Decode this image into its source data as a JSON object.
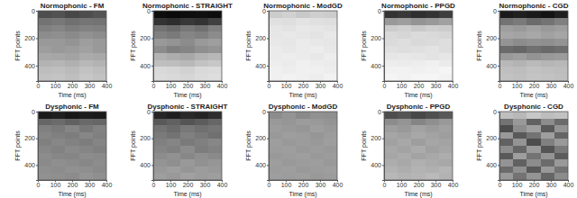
{
  "chart_data": [
    {
      "type": "heatmap",
      "title": "Normophonic - FM",
      "x_label": "Time (ms)",
      "y_label": "FFT points",
      "xlim": [
        0,
        400
      ],
      "xticks": [
        0,
        100,
        200,
        300,
        400
      ],
      "ylim": [
        0,
        512
      ],
      "yticks": [
        0,
        200,
        400
      ],
      "zlim": [
        0,
        1
      ],
      "cells": [
        [
          0.3,
          0.32,
          0.28,
          0.3,
          0.33
        ],
        [
          0.45,
          0.47,
          0.44,
          0.46,
          0.45
        ],
        [
          0.5,
          0.52,
          0.49,
          0.51,
          0.5
        ],
        [
          0.55,
          0.56,
          0.54,
          0.57,
          0.55
        ],
        [
          0.6,
          0.6,
          0.58,
          0.62,
          0.6
        ],
        [
          0.62,
          0.6,
          0.61,
          0.63,
          0.6
        ],
        [
          0.66,
          0.65,
          0.64,
          0.67,
          0.66
        ],
        [
          0.7,
          0.71,
          0.69,
          0.72,
          0.7
        ],
        [
          0.74,
          0.75,
          0.73,
          0.76,
          0.74
        ],
        [
          0.76,
          0.77,
          0.75,
          0.78,
          0.76
        ]
      ]
    },
    {
      "type": "heatmap",
      "title": "Normophonic - STRAIGHT",
      "x_label": "Time (ms)",
      "y_label": "FFT points",
      "xlim": [
        0,
        400
      ],
      "xticks": [
        0,
        100,
        200,
        300,
        400
      ],
      "ylim": [
        0,
        512
      ],
      "yticks": [
        0,
        200,
        400
      ],
      "zlim": [
        0,
        1
      ],
      "cells": [
        [
          0.05,
          0.04,
          0.05,
          0.06,
          0.05
        ],
        [
          0.2,
          0.18,
          0.22,
          0.2,
          0.25
        ],
        [
          0.45,
          0.42,
          0.47,
          0.44,
          0.5
        ],
        [
          0.5,
          0.48,
          0.52,
          0.5,
          0.55
        ],
        [
          0.6,
          0.58,
          0.55,
          0.6,
          0.62
        ],
        [
          0.55,
          0.5,
          0.52,
          0.56,
          0.58
        ],
        [
          0.7,
          0.68,
          0.66,
          0.7,
          0.72
        ],
        [
          0.75,
          0.74,
          0.72,
          0.76,
          0.78
        ],
        [
          0.85,
          0.84,
          0.82,
          0.85,
          0.86
        ],
        [
          0.86,
          0.85,
          0.84,
          0.86,
          0.87
        ]
      ]
    },
    {
      "type": "heatmap",
      "title": "Normophonic - ModGD",
      "x_label": "Time (ms)",
      "y_label": "FFT points",
      "xlim": [
        0,
        400
      ],
      "xticks": [
        0,
        100,
        200,
        300,
        400
      ],
      "ylim": [
        0,
        512
      ],
      "yticks": [
        0,
        200,
        400
      ],
      "zlim": [
        0,
        1
      ],
      "cells": [
        [
          0.8,
          0.82,
          0.79,
          0.81,
          0.8
        ],
        [
          0.88,
          0.87,
          0.89,
          0.88,
          0.87
        ],
        [
          0.9,
          0.89,
          0.91,
          0.9,
          0.89
        ],
        [
          0.9,
          0.91,
          0.9,
          0.89,
          0.91
        ],
        [
          0.91,
          0.9,
          0.92,
          0.91,
          0.9
        ],
        [
          0.92,
          0.91,
          0.92,
          0.93,
          0.91
        ],
        [
          0.92,
          0.93,
          0.92,
          0.91,
          0.93
        ],
        [
          0.93,
          0.92,
          0.94,
          0.93,
          0.92
        ],
        [
          0.94,
          0.93,
          0.94,
          0.94,
          0.93
        ],
        [
          0.94,
          0.95,
          0.94,
          0.93,
          0.95
        ]
      ]
    },
    {
      "type": "heatmap",
      "title": "Normophonic - PPGD",
      "x_label": "Time (ms)",
      "y_label": "FFT points",
      "xlim": [
        0,
        400
      ],
      "xticks": [
        0,
        100,
        200,
        300,
        400
      ],
      "ylim": [
        0,
        512
      ],
      "yticks": [
        0,
        200,
        400
      ],
      "zlim": [
        0,
        1
      ],
      "cells": [
        [
          0.2,
          0.22,
          0.18,
          0.2,
          0.24
        ],
        [
          0.6,
          0.62,
          0.58,
          0.6,
          0.63
        ],
        [
          0.8,
          0.82,
          0.79,
          0.81,
          0.8
        ],
        [
          0.85,
          0.84,
          0.86,
          0.85,
          0.84
        ],
        [
          0.86,
          0.87,
          0.85,
          0.86,
          0.87
        ],
        [
          0.88,
          0.87,
          0.88,
          0.89,
          0.87
        ],
        [
          0.9,
          0.91,
          0.9,
          0.89,
          0.9
        ],
        [
          0.93,
          0.92,
          0.93,
          0.94,
          0.92
        ],
        [
          0.95,
          0.95,
          0.94,
          0.95,
          0.96
        ],
        [
          0.96,
          0.95,
          0.96,
          0.96,
          0.95
        ]
      ]
    },
    {
      "type": "heatmap",
      "title": "Normophonic - CGD",
      "x_label": "Time (ms)",
      "y_label": "FFT points",
      "xlim": [
        0,
        400
      ],
      "xticks": [
        0,
        100,
        200,
        300,
        400
      ],
      "ylim": [
        0,
        512
      ],
      "yticks": [
        0,
        200,
        400
      ],
      "zlim": [
        0,
        1
      ],
      "cells": [
        [
          0.1,
          0.12,
          0.1,
          0.08,
          0.12
        ],
        [
          0.45,
          0.48,
          0.42,
          0.45,
          0.5
        ],
        [
          0.62,
          0.6,
          0.63,
          0.6,
          0.62
        ],
        [
          0.65,
          0.64,
          0.66,
          0.63,
          0.65
        ],
        [
          0.58,
          0.55,
          0.57,
          0.56,
          0.58
        ],
        [
          0.42,
          0.4,
          0.44,
          0.41,
          0.43
        ],
        [
          0.6,
          0.62,
          0.58,
          0.6,
          0.61
        ],
        [
          0.72,
          0.7,
          0.73,
          0.71,
          0.72
        ],
        [
          0.75,
          0.74,
          0.76,
          0.75,
          0.74
        ],
        [
          0.76,
          0.75,
          0.77,
          0.76,
          0.75
        ]
      ]
    },
    {
      "type": "heatmap",
      "title": "Dysphonic - FM",
      "x_label": "Time (ms)",
      "y_label": "FFT points",
      "xlim": [
        0,
        400
      ],
      "xticks": [
        0,
        100,
        200,
        300,
        400
      ],
      "ylim": [
        0,
        512
      ],
      "yticks": [
        0,
        200,
        400
      ],
      "zlim": [
        0,
        1
      ],
      "cells": [
        [
          0.1,
          0.12,
          0.09,
          0.11,
          0.1
        ],
        [
          0.4,
          0.42,
          0.38,
          0.41,
          0.4
        ],
        [
          0.5,
          0.48,
          0.52,
          0.47,
          0.51
        ],
        [
          0.52,
          0.5,
          0.49,
          0.53,
          0.5
        ],
        [
          0.5,
          0.53,
          0.51,
          0.49,
          0.52
        ],
        [
          0.53,
          0.51,
          0.54,
          0.52,
          0.5
        ],
        [
          0.55,
          0.53,
          0.52,
          0.55,
          0.54
        ],
        [
          0.54,
          0.56,
          0.55,
          0.53,
          0.55
        ],
        [
          0.56,
          0.55,
          0.57,
          0.56,
          0.54
        ],
        [
          0.57,
          0.56,
          0.55,
          0.58,
          0.56
        ]
      ]
    },
    {
      "type": "heatmap",
      "title": "Dysphonic - STRAIGHT",
      "x_label": "Time (ms)",
      "y_label": "FFT points",
      "xlim": [
        0,
        400
      ],
      "xticks": [
        0,
        100,
        200,
        300,
        400
      ],
      "ylim": [
        0,
        512
      ],
      "yticks": [
        0,
        200,
        400
      ],
      "zlim": [
        0,
        1
      ],
      "cells": [
        [
          0.15,
          0.12,
          0.16,
          0.14,
          0.18
        ],
        [
          0.35,
          0.38,
          0.33,
          0.36,
          0.4
        ],
        [
          0.45,
          0.42,
          0.47,
          0.44,
          0.46
        ],
        [
          0.48,
          0.45,
          0.5,
          0.47,
          0.44
        ],
        [
          0.5,
          0.52,
          0.48,
          0.5,
          0.53
        ],
        [
          0.52,
          0.5,
          0.55,
          0.49,
          0.51
        ],
        [
          0.55,
          0.57,
          0.53,
          0.56,
          0.54
        ],
        [
          0.58,
          0.56,
          0.6,
          0.57,
          0.59
        ],
        [
          0.6,
          0.62,
          0.59,
          0.61,
          0.6
        ],
        [
          0.62,
          0.6,
          0.63,
          0.61,
          0.62
        ]
      ]
    },
    {
      "type": "heatmap",
      "title": "Dysphonic - ModGD",
      "x_label": "Time (ms)",
      "y_label": "FFT points",
      "xlim": [
        0,
        400
      ],
      "xticks": [
        0,
        100,
        200,
        300,
        400
      ],
      "ylim": [
        0,
        512
      ],
      "yticks": [
        0,
        200,
        400
      ],
      "zlim": [
        0,
        1
      ],
      "cells": [
        [
          0.55,
          0.58,
          0.54,
          0.57,
          0.56
        ],
        [
          0.6,
          0.59,
          0.61,
          0.6,
          0.58
        ],
        [
          0.61,
          0.6,
          0.59,
          0.62,
          0.6
        ],
        [
          0.6,
          0.62,
          0.61,
          0.59,
          0.61
        ],
        [
          0.62,
          0.6,
          0.61,
          0.6,
          0.62
        ],
        [
          0.61,
          0.62,
          0.6,
          0.61,
          0.6
        ],
        [
          0.6,
          0.61,
          0.62,
          0.6,
          0.61
        ],
        [
          0.62,
          0.6,
          0.61,
          0.62,
          0.6
        ],
        [
          0.61,
          0.62,
          0.6,
          0.61,
          0.62
        ],
        [
          0.62,
          0.61,
          0.62,
          0.6,
          0.61
        ]
      ]
    },
    {
      "type": "heatmap",
      "title": "Dysphonic - PPGD",
      "x_label": "Time (ms)",
      "y_label": "FFT points",
      "xlim": [
        0,
        400
      ],
      "xticks": [
        0,
        100,
        200,
        300,
        400
      ],
      "ylim": [
        0,
        512
      ],
      "yticks": [
        0,
        200,
        400
      ],
      "zlim": [
        0,
        1
      ],
      "cells": [
        [
          0.3,
          0.33,
          0.28,
          0.31,
          0.35
        ],
        [
          0.55,
          0.58,
          0.52,
          0.56,
          0.6
        ],
        [
          0.62,
          0.6,
          0.64,
          0.61,
          0.63
        ],
        [
          0.65,
          0.63,
          0.66,
          0.64,
          0.62
        ],
        [
          0.63,
          0.66,
          0.62,
          0.65,
          0.64
        ],
        [
          0.66,
          0.64,
          0.67,
          0.63,
          0.65
        ],
        [
          0.65,
          0.67,
          0.64,
          0.66,
          0.68
        ],
        [
          0.68,
          0.66,
          0.69,
          0.67,
          0.66
        ],
        [
          0.7,
          0.68,
          0.7,
          0.69,
          0.71
        ],
        [
          0.72,
          0.7,
          0.71,
          0.73,
          0.7
        ]
      ]
    },
    {
      "type": "heatmap",
      "title": "Dysphonic - CGD",
      "x_label": "Time (ms)",
      "y_label": "FFT points",
      "xlim": [
        0,
        400
      ],
      "xticks": [
        0,
        100,
        200,
        300,
        400
      ],
      "ylim": [
        0,
        512
      ],
      "yticks": [
        0,
        200,
        400
      ],
      "zlim": [
        0,
        1
      ],
      "cells": [
        [
          0.75,
          0.72,
          0.78,
          0.74,
          0.76
        ],
        [
          0.45,
          0.6,
          0.38,
          0.55,
          0.42
        ],
        [
          0.3,
          0.55,
          0.62,
          0.35,
          0.58
        ],
        [
          0.6,
          0.35,
          0.45,
          0.62,
          0.4
        ],
        [
          0.38,
          0.58,
          0.3,
          0.5,
          0.6
        ],
        [
          0.55,
          0.4,
          0.6,
          0.33,
          0.48
        ],
        [
          0.35,
          0.62,
          0.45,
          0.58,
          0.36
        ],
        [
          0.58,
          0.38,
          0.55,
          0.42,
          0.6
        ],
        [
          0.42,
          0.56,
          0.35,
          0.6,
          0.45
        ],
        [
          0.6,
          0.45,
          0.58,
          0.4,
          0.55
        ]
      ]
    }
  ]
}
